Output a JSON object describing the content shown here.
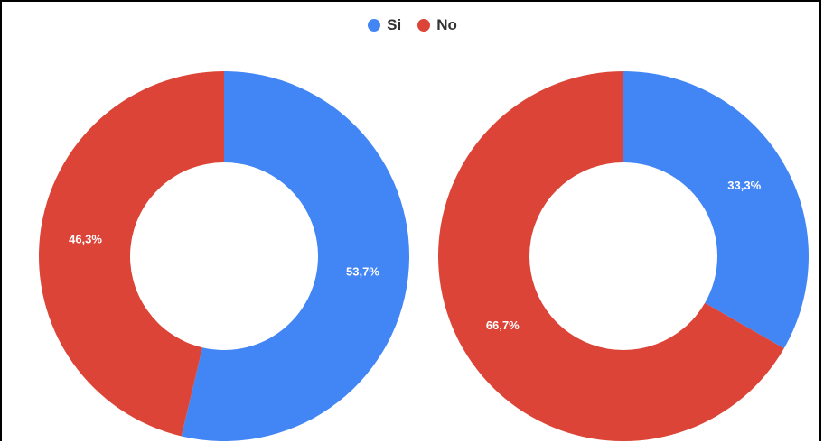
{
  "legend": {
    "items": [
      {
        "label": "Si",
        "color": "#4285f4"
      },
      {
        "label": "No",
        "color": "#db4437"
      }
    ]
  },
  "chart_data": [
    {
      "type": "pie",
      "donut": true,
      "legend_position": "top",
      "slices": [
        {
          "label": "Si",
          "value": 53.7,
          "display": "53,7%",
          "color": "#4285f4"
        },
        {
          "label": "No",
          "value": 46.3,
          "display": "46,3%",
          "color": "#db4437"
        }
      ]
    },
    {
      "type": "pie",
      "donut": true,
      "legend_position": "top",
      "slices": [
        {
          "label": "Si",
          "value": 33.3,
          "display": "33,3%",
          "color": "#4285f4"
        },
        {
          "label": "No",
          "value": 66.7,
          "display": "66,7%",
          "color": "#db4437"
        }
      ]
    }
  ]
}
